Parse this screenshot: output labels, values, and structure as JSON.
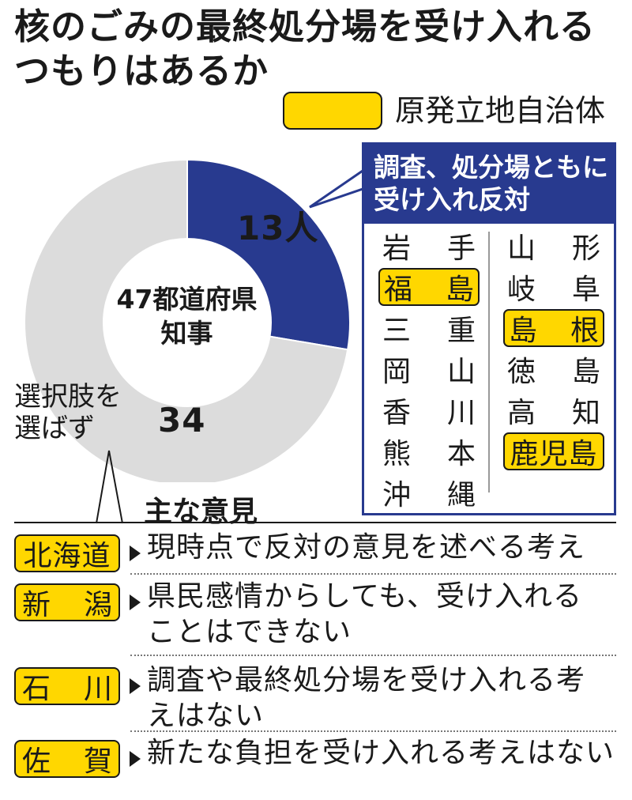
{
  "title": {
    "line1": "核のごみの最終処分場を受け入れる",
    "line2": "つもりはあるか"
  },
  "legend": {
    "label": "原発立地自治体",
    "color": "#ffd700"
  },
  "chart_data": {
    "type": "pie",
    "center_label": [
      "47都道府県",
      "知事"
    ],
    "slices": [
      {
        "name": "調査、処分場ともに受け入れ反対",
        "value": 13,
        "label": "13人",
        "color": "#283a8f"
      },
      {
        "name": "選択肢を選ばず",
        "value": 34,
        "label": "34",
        "color": "#dcdcdc"
      }
    ],
    "total": 47
  },
  "neutral_label": [
    "選択肢を",
    "選ばず"
  ],
  "opposed_box": {
    "heading": [
      "調査、処分場ともに",
      "受け入れ反対"
    ],
    "left_column": [
      {
        "chars": [
          "岩",
          "手"
        ],
        "highlight": false
      },
      {
        "chars": [
          "福",
          "島"
        ],
        "highlight": true
      },
      {
        "chars": [
          "三",
          "重"
        ],
        "highlight": false
      },
      {
        "chars": [
          "岡",
          "山"
        ],
        "highlight": false
      },
      {
        "chars": [
          "香",
          "川"
        ],
        "highlight": false
      },
      {
        "chars": [
          "熊",
          "本"
        ],
        "highlight": false
      },
      {
        "chars": [
          "沖",
          "縄"
        ],
        "highlight": false
      }
    ],
    "right_column": [
      {
        "chars": [
          "山",
          "形"
        ],
        "highlight": false
      },
      {
        "chars": [
          "岐",
          "阜"
        ],
        "highlight": false
      },
      {
        "chars": [
          "島",
          "根"
        ],
        "highlight": true
      },
      {
        "chars": [
          "徳",
          "島"
        ],
        "highlight": false
      },
      {
        "chars": [
          "高",
          "知"
        ],
        "highlight": false
      },
      {
        "chars": [
          "鹿児島"
        ],
        "highlight": true
      }
    ]
  },
  "opinions": {
    "heading": "主な意見",
    "items": [
      {
        "badge": [
          "北海道"
        ],
        "text": [
          "現時点で反対の意見を述べる考え"
        ]
      },
      {
        "badge": [
          "新",
          "潟"
        ],
        "text": [
          "県民感情からしても、受け入れる",
          "ことはできない"
        ]
      },
      {
        "badge": [
          "石",
          "川"
        ],
        "text": [
          "調査や最終処分場を受け入れる考",
          "えはない"
        ]
      },
      {
        "badge": [
          "佐",
          "賀"
        ],
        "text": [
          "新たな負担を受け入れる考えはない"
        ]
      }
    ]
  },
  "colors": {
    "navy": "#283a8f",
    "gray": "#dcdcdc",
    "yellow": "#ffd700"
  }
}
